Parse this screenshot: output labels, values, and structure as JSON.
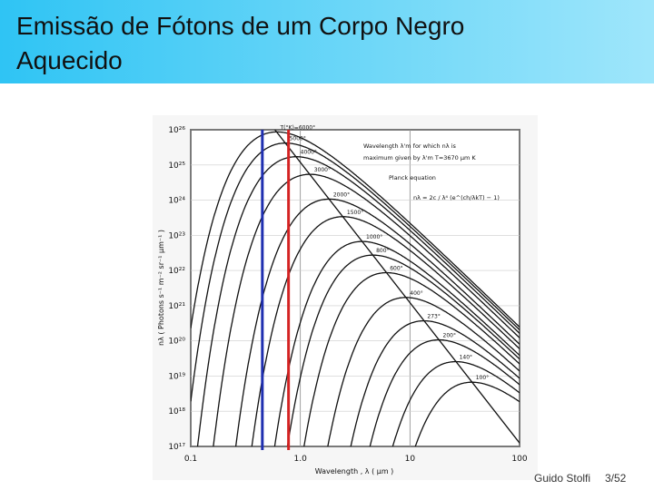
{
  "header": {
    "title": "Emissão de Fótons de um Corpo Negro Aquecido"
  },
  "chart_data": {
    "type": "line",
    "ylabel": "nλ ( Photons s⁻¹ m⁻² sr⁻¹ μm⁻¹ )",
    "xlabel": "Wavelength , λ ( μm )",
    "log_x": true,
    "log_y": true,
    "grid": true,
    "xlim": [
      0.1,
      100
    ],
    "xticks": [
      0.1,
      {
        "value": 1,
        "label": "1.0"
      },
      10,
      100
    ],
    "ylim": [
      1e+17,
      1e+26
    ],
    "yticks": [
      {
        "value": 1e+17,
        "label": "10¹⁷"
      },
      {
        "value": 1e+18,
        "label": "10¹⁸"
      },
      {
        "value": 1e+19,
        "label": "10¹⁹"
      },
      {
        "value": 1e+20,
        "label": "10²⁰"
      },
      {
        "value": 1e+21,
        "label": "10²¹"
      },
      {
        "value": 1e+22,
        "label": "10²²"
      },
      {
        "value": 1e+23,
        "label": "10²³"
      },
      {
        "value": 1e+24,
        "label": "10²⁴"
      },
      {
        "value": 1e+25,
        "label": "10²⁵"
      },
      {
        "value": 1e+26,
        "label": "10²⁶"
      }
    ],
    "color": "#111111",
    "series": [
      {
        "name": "T(°K)=6000°",
        "temperature": 6000
      },
      {
        "name": "5000°",
        "temperature": 5000
      },
      {
        "name": "4000°",
        "temperature": 4000
      },
      {
        "name": "3000°",
        "temperature": 3000
      },
      {
        "name": "2000°",
        "temperature": 2000
      },
      {
        "name": "1500°",
        "temperature": 1500
      },
      {
        "name": "1000°",
        "temperature": 1000
      },
      {
        "name": "800°",
        "temperature": 800
      },
      {
        "name": "600°",
        "temperature": 600
      },
      {
        "name": "400°",
        "temperature": 400
      },
      {
        "name": "273°",
        "temperature": 273
      },
      {
        "name": "200°",
        "temperature": 200
      },
      {
        "name": "140°",
        "temperature": 140
      },
      {
        "name": "100°",
        "temperature": 100
      }
    ],
    "markers": [
      {
        "x": 0.45,
        "color": "#1f2fb0"
      },
      {
        "x": 0.78,
        "color": "#d42323"
      }
    ],
    "annotations": [
      "Wavelength λ'm for which nλ is",
      "maximum given by λ'm T=3670 μm K",
      "Planck equation",
      "nλ = 2c / λ⁴ (e^(ch/λkT) − 1)"
    ]
  },
  "footer": {
    "author": "Guido Stolfi",
    "page": "3/52"
  }
}
